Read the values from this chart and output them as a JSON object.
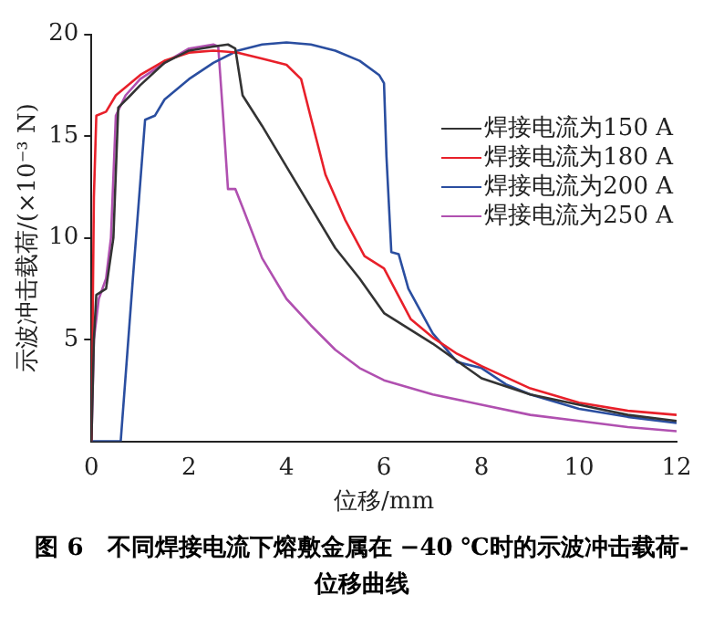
{
  "chart_data": {
    "type": "line",
    "title": "图 6　不同焊接电流下熔敷金属在 −40 ℃时的示波冲击载荷-位移曲线",
    "xlabel": "位移/mm",
    "ylabel": "示波冲击载荷/(×10⁻³ N)",
    "xlim": [
      0,
      12
    ],
    "xticks": [
      0,
      2,
      4,
      6,
      8,
      10,
      12
    ],
    "ylim": [
      0,
      20
    ],
    "yticks": [
      5,
      10,
      15,
      20
    ],
    "grid": false,
    "legend": "top right",
    "marker": "none",
    "line_style": "solid",
    "series": [
      {
        "name": "焊接电流为150 A",
        "color": "#333333",
        "x": [
          0,
          0.05,
          0.1,
          0.3,
          0.45,
          0.55,
          0.8,
          1.0,
          1.5,
          2.0,
          2.5,
          2.8,
          2.95,
          3.1,
          3.5,
          4.0,
          4.5,
          5.0,
          5.5,
          6.0,
          7.0,
          8.0,
          9.0,
          10.0,
          11.0,
          12.0
        ],
        "values": [
          0,
          5,
          7.2,
          7.5,
          10,
          16.4,
          17,
          17.5,
          18.6,
          19.2,
          19.4,
          19.5,
          19.3,
          17,
          15.5,
          13.5,
          11.5,
          9.5,
          8,
          6.3,
          4.8,
          3.1,
          2.3,
          1.8,
          1.3,
          1.0
        ]
      },
      {
        "name": "焊接电流为180 A",
        "color": "#e8202a",
        "x": [
          0,
          0.05,
          0.1,
          0.3,
          0.5,
          1.0,
          1.5,
          2.0,
          2.5,
          3.0,
          3.5,
          4.0,
          4.3,
          4.5,
          4.8,
          5.2,
          5.6,
          6.0,
          6.55,
          7.0,
          7.5,
          8.0,
          9.0,
          10.0,
          11.0,
          12.0
        ],
        "values": [
          0,
          12,
          16,
          16.2,
          17,
          18,
          18.7,
          19.1,
          19.2,
          19.1,
          18.8,
          18.5,
          17.8,
          15.9,
          13.1,
          10.9,
          9.1,
          8.5,
          6,
          5.1,
          4.3,
          3.7,
          2.6,
          1.9,
          1.5,
          1.3
        ]
      },
      {
        "name": "焊接电流为200 A",
        "color": "#2a4ea0",
        "x": [
          0,
          0.6,
          0.85,
          1.1,
          1.3,
          1.5,
          2.0,
          2.5,
          3.0,
          3.5,
          4.0,
          4.5,
          5.0,
          5.5,
          5.9,
          6.0,
          6.05,
          6.15,
          6.3,
          6.5,
          7.0,
          7.5,
          8.0,
          8.5,
          9.0,
          10.0,
          11.0,
          12.0
        ],
        "values": [
          0,
          0,
          8,
          15.8,
          16,
          16.8,
          17.8,
          18.6,
          19.2,
          19.5,
          19.6,
          19.5,
          19.2,
          18.7,
          18,
          17.6,
          14,
          9.3,
          9.2,
          7.5,
          5.3,
          3.9,
          3.6,
          2.8,
          2.3,
          1.6,
          1.2,
          0.9
        ]
      },
      {
        "name": "焊接电流为250 A",
        "color": "#b050b0",
        "x": [
          0,
          0.05,
          0.15,
          0.3,
          0.4,
          0.5,
          0.7,
          1.0,
          1.5,
          2.0,
          2.5,
          2.6,
          2.7,
          2.8,
          2.95,
          3.1,
          3.5,
          4.0,
          4.5,
          5.0,
          5.5,
          6.0,
          7.0,
          8.0,
          9.0,
          10.0,
          11.0,
          12.0
        ],
        "values": [
          0,
          5,
          7,
          8,
          10,
          16,
          17,
          17.8,
          18.6,
          19.3,
          19.5,
          19.4,
          16,
          12.4,
          12.4,
          11.5,
          9,
          7,
          5.7,
          4.5,
          3.6,
          3.0,
          2.3,
          1.8,
          1.3,
          1.0,
          0.7,
          0.5
        ]
      }
    ]
  }
}
